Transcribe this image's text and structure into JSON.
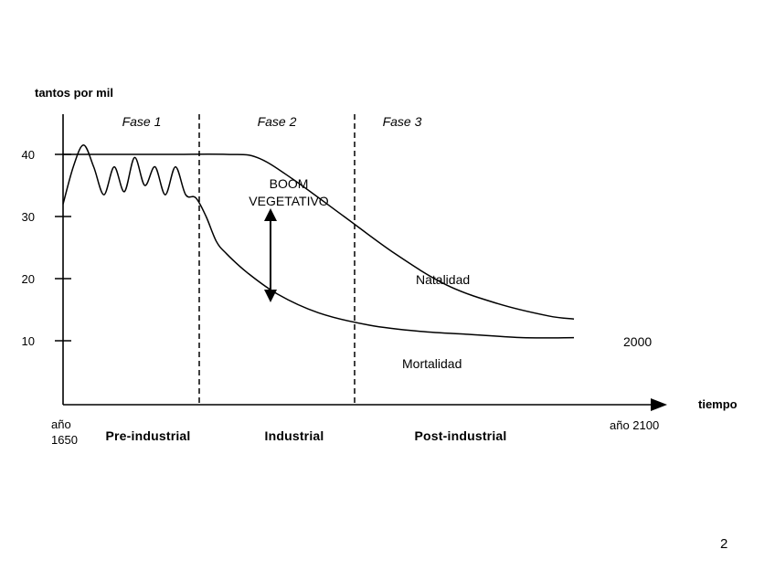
{
  "chart_data": {
    "type": "line",
    "ylabel": "tantos por mil",
    "xlabel": "tiempo",
    "ylim": [
      0,
      46
    ],
    "yticks": [
      10,
      20,
      30,
      40
    ],
    "x_start_label": "año 1650",
    "x_end_label": "año 2100",
    "phases": [
      {
        "name": "Fase 1",
        "era": "Pre-industrial"
      },
      {
        "name": "Fase 2",
        "era": "Industrial"
      },
      {
        "name": "Fase 3",
        "era": "Post-industrial"
      }
    ],
    "annotations": {
      "boom_line1": "BOOM",
      "boom_line2": "VEGETATIVO",
      "year_marker": "2000"
    },
    "series": [
      {
        "name": "Natalidad",
        "x": [
          0.0,
          0.2,
          0.32,
          0.38,
          0.45,
          0.55,
          0.65,
          0.75,
          0.85,
          0.95,
          1.0
        ],
        "y": [
          40,
          40,
          40,
          39.5,
          36,
          30,
          24,
          19,
          16,
          14,
          13.5
        ]
      },
      {
        "name": "Mortalidad",
        "x": [
          0.0,
          0.02,
          0.04,
          0.06,
          0.08,
          0.1,
          0.12,
          0.14,
          0.16,
          0.18,
          0.2,
          0.22,
          0.24,
          0.26,
          0.28,
          0.3,
          0.32,
          0.36,
          0.42,
          0.5,
          0.6,
          0.7,
          0.8,
          0.9,
          1.0
        ],
        "y": [
          32,
          38,
          41.5,
          38,
          33.5,
          38,
          34,
          39.5,
          35,
          38,
          33.5,
          38,
          33.5,
          33,
          30,
          26,
          24,
          21,
          17.5,
          14.5,
          12.5,
          11.5,
          11,
          10.5,
          10.5
        ]
      }
    ]
  },
  "page_number": "2"
}
